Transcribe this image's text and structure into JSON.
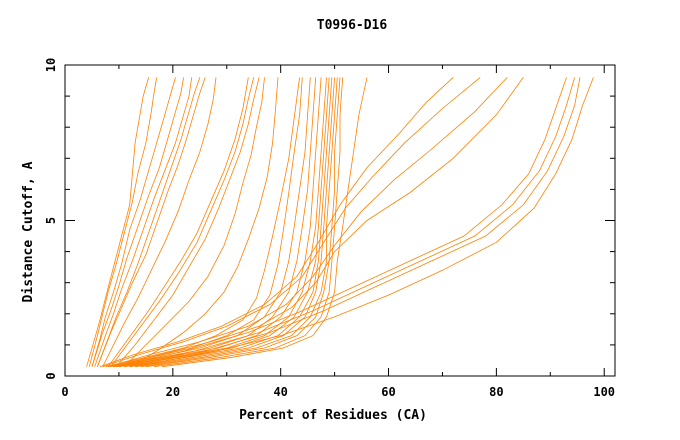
{
  "chart_data": {
    "type": "line",
    "title": "T0996-D16",
    "xlabel": "Percent of Residues (CA)",
    "ylabel": "Distance Cutoff, A",
    "xlim": [
      0,
      102
    ],
    "ylim": [
      0,
      10
    ],
    "xticks": [
      "0",
      "20",
      "40",
      "60",
      "80",
      "100"
    ],
    "yticks": [
      "0",
      "5",
      "10"
    ],
    "xtick_values": [
      0,
      20,
      40,
      60,
      80,
      100
    ],
    "ytick_values": [
      0,
      5,
      10
    ],
    "line_color": "#ff8000",
    "grid": false,
    "series": [
      {
        "x": [
          4.0,
          5.5,
          6.5,
          7.5,
          9.0,
          10.5,
          12.0,
          12.5,
          13.0,
          14.0,
          14.5,
          15.5
        ],
        "y": [
          0.3,
          1.2,
          1.8,
          2.5,
          3.5,
          4.5,
          5.5,
          6.5,
          7.5,
          8.5,
          9.0,
          9.6
        ]
      },
      {
        "x": [
          4.5,
          6.0,
          7.0,
          8.0,
          9.5,
          11.0,
          12.5,
          13.5,
          15.0,
          16.0,
          16.5,
          17.0
        ],
        "y": [
          0.3,
          1.3,
          2.0,
          2.7,
          3.6,
          4.6,
          5.6,
          6.5,
          7.5,
          8.5,
          9.1,
          9.6
        ]
      },
      {
        "x": [
          5.0,
          6.5,
          7.5,
          9.0,
          10.5,
          12.0,
          14.0,
          15.5,
          17.0,
          18.5,
          19.5,
          20.5
        ],
        "y": [
          0.3,
          1.2,
          1.9,
          2.7,
          3.6,
          4.7,
          5.7,
          6.6,
          7.5,
          8.4,
          9.0,
          9.6
        ]
      },
      {
        "x": [
          5.0,
          7.0,
          8.5,
          10.0,
          11.5,
          13.5,
          15.5,
          17.5,
          19.0,
          20.5,
          21.5,
          22.0
        ],
        "y": [
          0.3,
          1.4,
          2.1,
          2.9,
          3.8,
          4.8,
          5.8,
          6.7,
          7.6,
          8.5,
          9.1,
          9.6
        ]
      },
      {
        "x": [
          5.5,
          7.5,
          9.0,
          10.5,
          12.5,
          14.5,
          16.5,
          18.5,
          20.5,
          22.0,
          23.0,
          23.5
        ],
        "y": [
          0.3,
          1.3,
          2.0,
          2.8,
          3.7,
          4.7,
          5.7,
          6.6,
          7.5,
          8.4,
          9.0,
          9.6
        ]
      },
      {
        "x": [
          6.0,
          8.0,
          9.5,
          11.5,
          13.5,
          15.5,
          17.5,
          19.5,
          21.5,
          23.0,
          24.0,
          25.0
        ],
        "y": [
          0.3,
          1.2,
          1.9,
          2.7,
          3.6,
          4.6,
          5.6,
          6.6,
          7.6,
          8.5,
          9.1,
          9.6
        ]
      },
      {
        "x": [
          6.0,
          8.5,
          10.5,
          12.5,
          15.0,
          17.0,
          19.0,
          21.0,
          22.5,
          24.0,
          25.0,
          26.0
        ],
        "y": [
          0.3,
          1.4,
          2.2,
          3.0,
          3.9,
          4.9,
          5.9,
          6.8,
          7.6,
          8.5,
          9.1,
          9.6
        ]
      },
      {
        "x": [
          7.0,
          9.0,
          11.0,
          13.5,
          16.0,
          18.5,
          21.0,
          23.0,
          25.0,
          26.5,
          27.5,
          28.0
        ],
        "y": [
          0.3,
          1.0,
          1.7,
          2.5,
          3.4,
          4.3,
          5.3,
          6.3,
          7.2,
          8.1,
          8.9,
          9.6
        ]
      },
      {
        "x": [
          8.0,
          10.5,
          13.0,
          15.5,
          18.5,
          21.5,
          24.5,
          27.0,
          29.5,
          31.5,
          33.0,
          34.0
        ],
        "y": [
          0.3,
          0.9,
          1.5,
          2.1,
          2.9,
          3.7,
          4.6,
          5.6,
          6.6,
          7.6,
          8.6,
          9.6
        ]
      },
      {
        "x": [
          8.5,
          11.5,
          14.5,
          17.5,
          21.0,
          24.5,
          27.0,
          29.5,
          31.5,
          33.0,
          34.0,
          35.0
        ],
        "y": [
          0.3,
          1.0,
          1.7,
          2.4,
          3.3,
          4.3,
          5.3,
          6.3,
          7.2,
          8.1,
          8.9,
          9.6
        ]
      },
      {
        "x": [
          9.5,
          13.0,
          16.5,
          20.0,
          23.0,
          26.0,
          28.5,
          30.5,
          32.5,
          34.0,
          35.0,
          36.0
        ],
        "y": [
          0.3,
          1.0,
          1.8,
          2.6,
          3.5,
          4.4,
          5.4,
          6.3,
          7.2,
          8.1,
          8.9,
          9.6
        ]
      },
      {
        "x": [
          11.0,
          15.0,
          19.0,
          23.0,
          26.5,
          29.5,
          31.5,
          33.0,
          34.5,
          35.5,
          36.5,
          37.0
        ],
        "y": [
          0.3,
          1.0,
          1.7,
          2.4,
          3.2,
          4.2,
          5.2,
          6.2,
          7.1,
          8.0,
          8.8,
          9.6
        ]
      },
      {
        "x": [
          12.0,
          17.0,
          22.0,
          26.0,
          29.5,
          32.0,
          34.0,
          36.0,
          37.5,
          38.5,
          39.0,
          39.5
        ],
        "y": [
          0.3,
          0.8,
          1.4,
          2.0,
          2.7,
          3.5,
          4.4,
          5.4,
          6.4,
          7.5,
          8.5,
          9.6
        ]
      },
      {
        "x": [
          7.5,
          15.0,
          22.0,
          28.0,
          33.0,
          35.5,
          37.0,
          38.5,
          40.0,
          41.5,
          42.5,
          43.5
        ],
        "y": [
          0.3,
          0.6,
          0.9,
          1.3,
          1.8,
          2.5,
          3.4,
          4.5,
          5.7,
          7.0,
          8.3,
          9.6
        ]
      },
      {
        "x": [
          8.0,
          16.0,
          23.5,
          30.0,
          35.0,
          38.0,
          39.5,
          40.5,
          41.5,
          42.5,
          43.5,
          44.0
        ],
        "y": [
          0.3,
          0.6,
          0.9,
          1.3,
          1.8,
          2.6,
          3.6,
          4.7,
          5.9,
          7.2,
          8.4,
          9.6
        ]
      },
      {
        "x": [
          8.5,
          17.0,
          25.0,
          32.0,
          37.0,
          40.0,
          41.5,
          42.5,
          43.5,
          44.5,
          45.0,
          45.5
        ],
        "y": [
          0.3,
          0.6,
          0.9,
          1.3,
          1.9,
          2.7,
          3.7,
          4.8,
          6.0,
          7.2,
          8.4,
          9.6
        ]
      },
      {
        "x": [
          9.0,
          18.0,
          27.0,
          34.0,
          38.5,
          41.5,
          43.0,
          44.0,
          45.0,
          45.5,
          46.0,
          46.5
        ],
        "y": [
          0.3,
          0.6,
          0.9,
          1.3,
          1.9,
          2.7,
          3.7,
          4.8,
          6.0,
          7.2,
          8.4,
          9.6
        ]
      },
      {
        "x": [
          9.5,
          19.0,
          28.5,
          35.5,
          40.0,
          43.0,
          44.5,
          45.5,
          46.0,
          46.5,
          47.0,
          47.5
        ],
        "y": [
          0.3,
          0.6,
          0.9,
          1.3,
          1.9,
          2.7,
          3.7,
          4.8,
          6.0,
          7.2,
          8.4,
          9.6
        ]
      },
      {
        "x": [
          10.0,
          20.0,
          30.0,
          37.0,
          41.5,
          44.0,
          45.5,
          46.5,
          47.0,
          47.5,
          48.0,
          48.5
        ],
        "y": [
          0.3,
          0.6,
          0.9,
          1.3,
          1.9,
          2.7,
          3.7,
          4.8,
          6.0,
          7.2,
          8.4,
          9.6
        ]
      },
      {
        "x": [
          11.0,
          21.0,
          31.0,
          38.0,
          42.5,
          45.0,
          46.5,
          47.0,
          47.5,
          48.0,
          48.5,
          49.0
        ],
        "y": [
          0.3,
          0.6,
          0.9,
          1.3,
          1.9,
          2.7,
          3.7,
          4.8,
          6.0,
          7.2,
          8.4,
          9.6
        ]
      },
      {
        "x": [
          12.0,
          22.5,
          32.5,
          39.5,
          43.5,
          46.0,
          47.0,
          47.5,
          48.0,
          48.5,
          49.0,
          49.5
        ],
        "y": [
          0.3,
          0.6,
          0.9,
          1.3,
          1.9,
          2.7,
          3.7,
          4.8,
          6.0,
          7.2,
          8.4,
          9.6
        ]
      },
      {
        "x": [
          13.0,
          24.0,
          34.0,
          40.5,
          44.5,
          46.5,
          47.5,
          48.0,
          48.5,
          49.0,
          49.5,
          50.0
        ],
        "y": [
          0.3,
          0.6,
          0.9,
          1.3,
          1.9,
          2.7,
          3.7,
          4.8,
          6.0,
          7.2,
          8.4,
          9.6
        ]
      },
      {
        "x": [
          14.0,
          25.5,
          35.5,
          42.0,
          45.5,
          47.5,
          48.5,
          48.5,
          49.0,
          49.5,
          50.0,
          50.5
        ],
        "y": [
          0.3,
          0.6,
          0.9,
          1.3,
          1.9,
          2.7,
          3.7,
          4.8,
          6.0,
          7.2,
          8.4,
          9.6
        ]
      },
      {
        "x": [
          15.0,
          27.0,
          37.0,
          43.0,
          46.5,
          48.0,
          49.0,
          49.5,
          50.0,
          50.0,
          50.5,
          51.0
        ],
        "y": [
          0.3,
          0.6,
          0.9,
          1.3,
          1.9,
          2.7,
          3.7,
          4.8,
          6.0,
          7.2,
          8.4,
          9.6
        ]
      },
      {
        "x": [
          16.5,
          29.0,
          39.0,
          44.5,
          47.5,
          49.0,
          49.5,
          50.0,
          50.5,
          51.0,
          51.0,
          51.5
        ],
        "y": [
          0.3,
          0.6,
          0.9,
          1.3,
          1.9,
          2.7,
          3.7,
          4.8,
          6.0,
          7.2,
          8.4,
          9.6
        ]
      },
      {
        "x": [
          18.0,
          31.0,
          40.5,
          46.0,
          48.5,
          50.0,
          50.5,
          51.5,
          52.5,
          53.5,
          54.5,
          56.0
        ],
        "y": [
          0.3,
          0.6,
          0.9,
          1.3,
          1.9,
          2.7,
          3.7,
          4.8,
          6.0,
          7.2,
          8.4,
          9.6
        ]
      },
      {
        "x": [
          7.0,
          14.0,
          22.0,
          30.0,
          38.0,
          44.0,
          48.0,
          52.0,
          57.0,
          63.0,
          70.0,
          77.0
        ],
        "y": [
          0.3,
          0.7,
          1.1,
          1.6,
          2.3,
          3.2,
          4.3,
          5.4,
          6.4,
          7.5,
          8.6,
          9.6
        ]
      },
      {
        "x": [
          6.5,
          13.0,
          21.0,
          29.0,
          37.0,
          43.0,
          47.0,
          51.0,
          56.0,
          62.0,
          67.0,
          72.0
        ],
        "y": [
          0.3,
          0.7,
          1.1,
          1.6,
          2.3,
          3.2,
          4.3,
          5.5,
          6.7,
          7.8,
          8.8,
          9.6
        ]
      },
      {
        "x": [
          8.0,
          16.0,
          25.0,
          34.0,
          41.0,
          46.0,
          50.0,
          55.0,
          61.0,
          68.0,
          76.0,
          82.0
        ],
        "y": [
          0.3,
          0.7,
          1.1,
          1.6,
          2.3,
          3.2,
          4.2,
          5.3,
          6.3,
          7.3,
          8.5,
          9.6
        ]
      },
      {
        "x": [
          9.0,
          18.0,
          27.0,
          36.0,
          42.0,
          46.5,
          50.0,
          56.0,
          64.0,
          72.0,
          80.0,
          85.0
        ],
        "y": [
          0.3,
          0.7,
          1.1,
          1.6,
          2.2,
          3.0,
          4.0,
          5.0,
          5.9,
          7.0,
          8.4,
          9.6
        ]
      },
      {
        "x": [
          10.0,
          22.0,
          34.0,
          44.0,
          54.0,
          64.0,
          74.0,
          81.0,
          86.0,
          89.0,
          91.0,
          93.0
        ],
        "y": [
          0.3,
          0.8,
          1.4,
          2.1,
          2.9,
          3.7,
          4.5,
          5.5,
          6.5,
          7.6,
          8.6,
          9.6
        ]
      },
      {
        "x": [
          11.0,
          24.0,
          36.0,
          46.0,
          56.0,
          66.0,
          76.0,
          83.0,
          88.0,
          91.0,
          93.0,
          94.5
        ],
        "y": [
          0.3,
          0.8,
          1.4,
          2.1,
          2.9,
          3.7,
          4.5,
          5.5,
          6.6,
          7.7,
          8.7,
          9.6
        ]
      },
      {
        "x": [
          12.0,
          26.0,
          38.0,
          48.0,
          58.0,
          68.0,
          78.0,
          85.0,
          89.5,
          92.5,
          94.5,
          95.5
        ],
        "y": [
          0.3,
          0.8,
          1.4,
          2.1,
          2.9,
          3.7,
          4.5,
          5.5,
          6.6,
          7.7,
          8.7,
          9.6
        ]
      },
      {
        "x": [
          13.0,
          28.0,
          40.0,
          50.0,
          60.0,
          70.0,
          80.0,
          87.0,
          91.0,
          94.0,
          96.0,
          98.0
        ],
        "y": [
          0.3,
          0.8,
          1.3,
          1.9,
          2.6,
          3.4,
          4.3,
          5.4,
          6.5,
          7.6,
          8.7,
          9.6
        ]
      }
    ]
  }
}
